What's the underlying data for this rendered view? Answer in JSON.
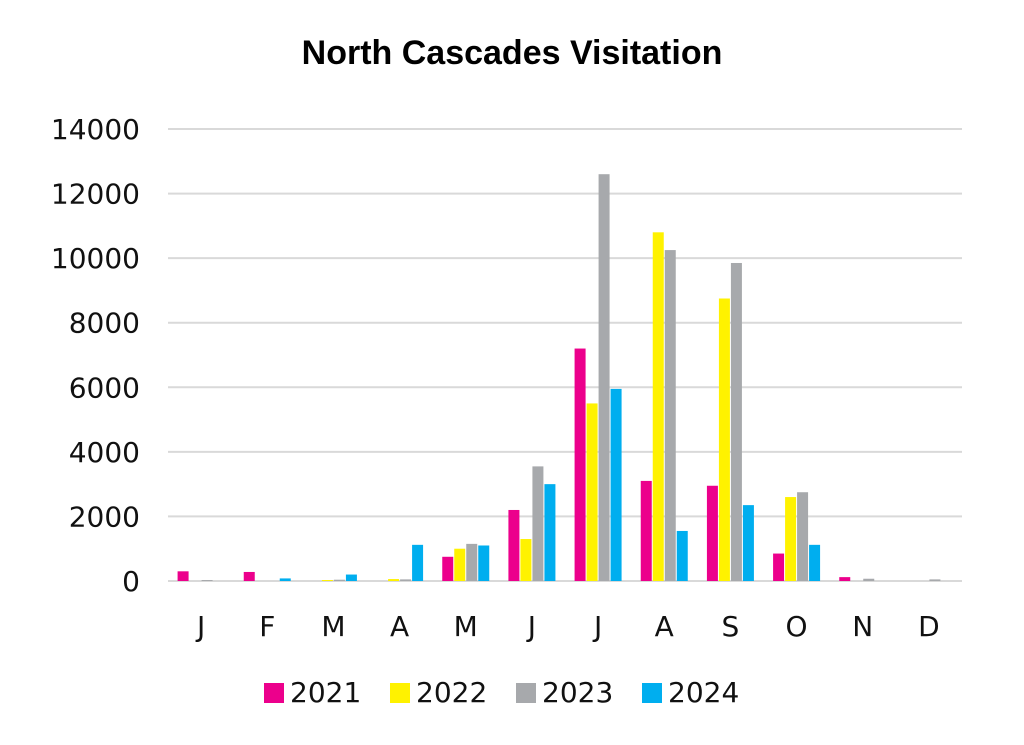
{
  "chart_data": {
    "type": "bar",
    "title": "North Cascades Visitation",
    "xlabel": "",
    "ylabel": "",
    "categories": [
      "J",
      "F",
      "M",
      "A",
      "M",
      "J",
      "J",
      "A",
      "S",
      "O",
      "N",
      "D"
    ],
    "ylim": [
      0,
      14000
    ],
    "yticks": [
      0,
      2000,
      4000,
      6000,
      8000,
      10000,
      12000,
      14000
    ],
    "grid": true,
    "legend_position": "bottom",
    "series": [
      {
        "name": "2021",
        "color": "#ec008c",
        "values": [
          300,
          280,
          0,
          0,
          750,
          2200,
          7200,
          3100,
          2950,
          850,
          120,
          0
        ]
      },
      {
        "name": "2022",
        "color": "#fff200",
        "values": [
          0,
          0,
          30,
          60,
          1000,
          1300,
          5500,
          10800,
          8750,
          2600,
          0,
          0
        ]
      },
      {
        "name": "2023",
        "color": "#a7a9ac",
        "values": [
          30,
          0,
          40,
          50,
          1150,
          3550,
          12600,
          10250,
          9850,
          2750,
          70,
          50
        ]
      },
      {
        "name": "2024",
        "color": "#00aeef",
        "values": [
          0,
          80,
          200,
          1120,
          1100,
          3000,
          5950,
          1550,
          2350,
          1120,
          0,
          0
        ]
      }
    ]
  }
}
